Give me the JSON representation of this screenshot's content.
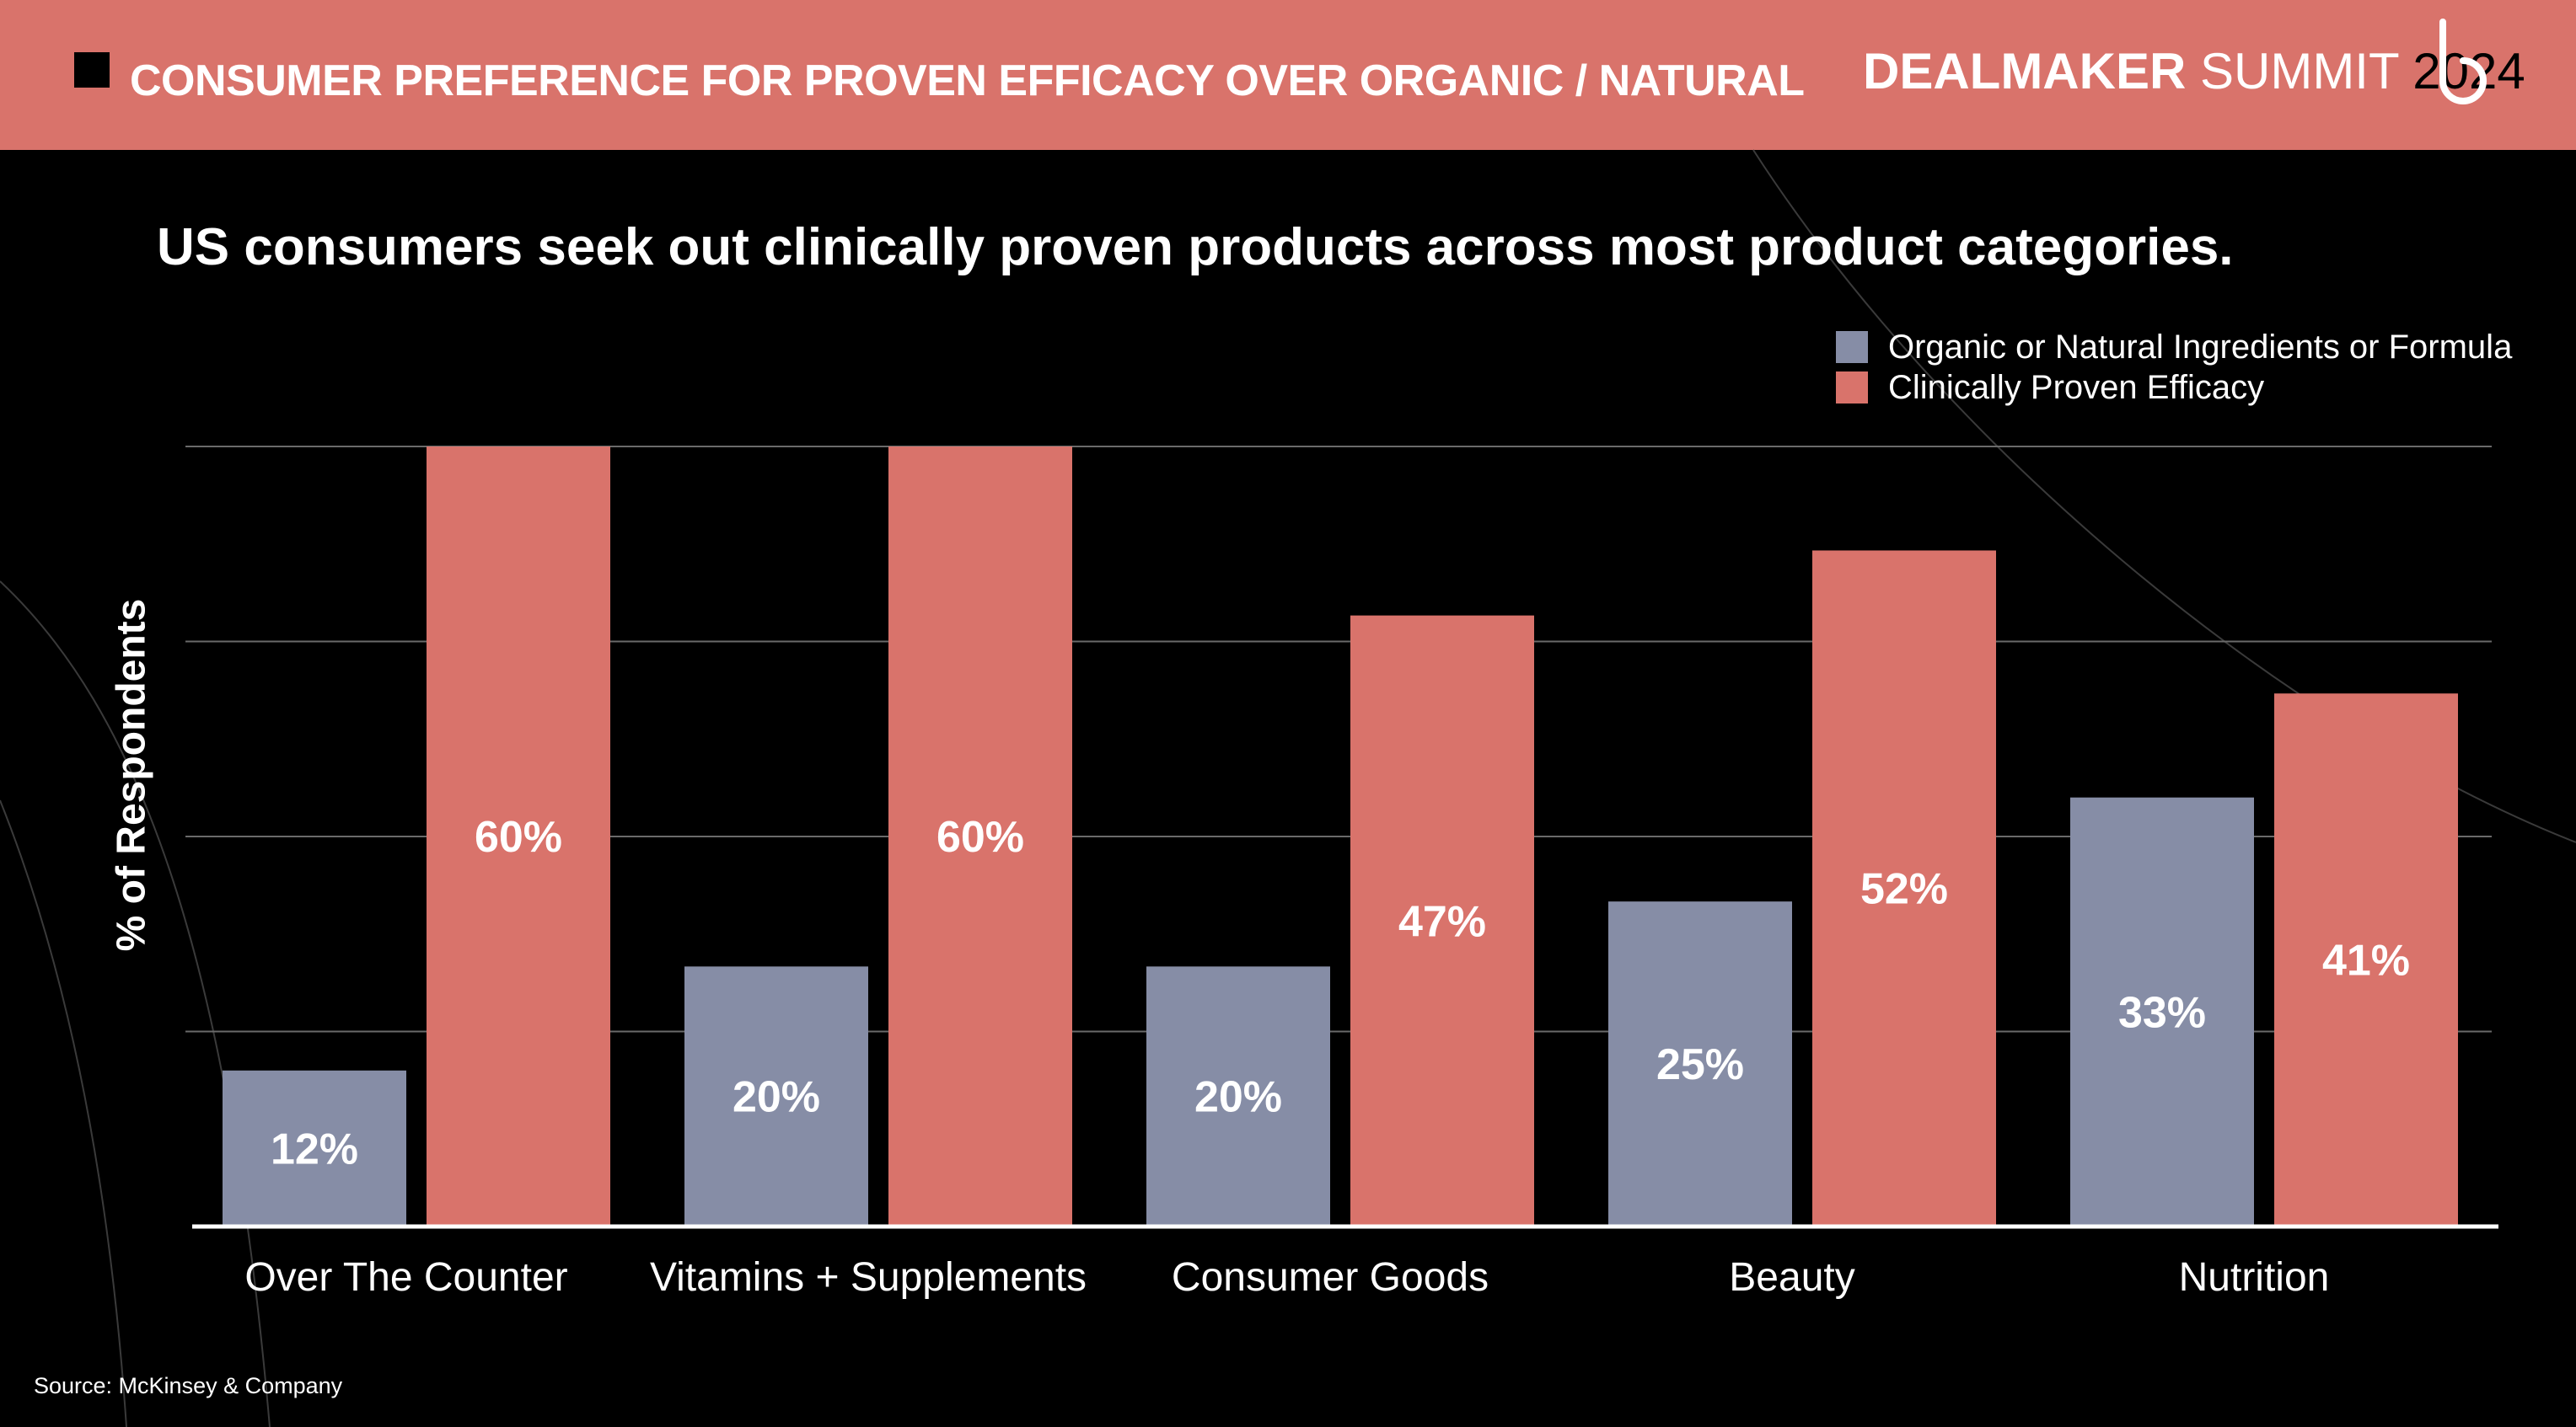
{
  "header": {
    "title": "CONSUMER PREFERENCE FOR PROVEN EFFICACY OVER ORGANIC / NATURAL",
    "brand_strong": "DEALMAKER",
    "brand_light": "SUMMIT",
    "brand_year": "2024",
    "logo_icon": "b-logo-icon"
  },
  "colors": {
    "header_bg": "#d9736b",
    "organic": "#868da6",
    "clinical": "#d9736b",
    "background": "#000000"
  },
  "chart_data": {
    "type": "bar",
    "title": "US consumers seek out clinically proven products across most product categories.",
    "ylabel": "% of Respondents",
    "xlabel": "",
    "ylim": [
      0,
      60
    ],
    "grid": true,
    "legend_position": "top-right",
    "categories": [
      "Over The Counter",
      "Vitamins + Supplements",
      "Consumer Goods",
      "Beauty",
      "Nutrition"
    ],
    "series": [
      {
        "name": "Organic or Natural Ingredients or Formula",
        "values": [
          12,
          20,
          20,
          25,
          33
        ],
        "labels": [
          "12%",
          "20%",
          "20%",
          "25%",
          "33%"
        ],
        "color": "#868da6"
      },
      {
        "name": "Clinically Proven Efficacy",
        "values": [
          60,
          60,
          47,
          52,
          41
        ],
        "labels": [
          "60%",
          "60%",
          "47%",
          "52%",
          "41%"
        ],
        "color": "#d9736b"
      }
    ]
  },
  "footer": {
    "source": "Source: McKinsey & Company"
  }
}
